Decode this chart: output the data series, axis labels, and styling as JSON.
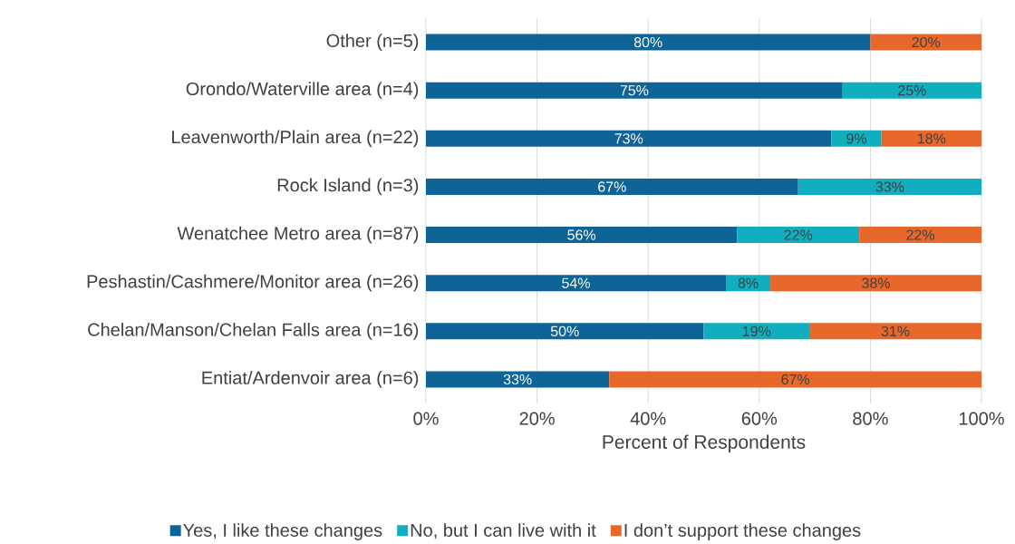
{
  "chart_data": {
    "type": "bar",
    "orientation": "horizontal",
    "stacked": true,
    "xlabel": "Percent of Respondents",
    "categories": [
      "Other (n=5)",
      "Orondo/Waterville area (n=4)",
      "Leavenworth/Plain area (n=22)",
      "Rock Island (n=3)",
      "Wenatchee Metro area (n=87)",
      "Peshastin/Cashmere/Monitor area (n=26)",
      "Chelan/Manson/Chelan Falls area (n=16)",
      "Entiat/Ardenvoir area (n=6)"
    ],
    "series": [
      {
        "name": "Yes, I like these changes",
        "color": "#0e6496",
        "values": [
          80,
          75,
          73,
          67,
          56,
          54,
          50,
          33
        ],
        "value_labels": [
          "80%",
          "75%",
          "73%",
          "67%",
          "56%",
          "54%",
          "50%",
          "33%"
        ]
      },
      {
        "name": "No, but I can live with it",
        "color": "#10aebf",
        "values": [
          null,
          25,
          9,
          33,
          22,
          8,
          19,
          null
        ],
        "value_labels": [
          null,
          "25%",
          "9%",
          "33%",
          "22%",
          "8%",
          "19%",
          null
        ]
      },
      {
        "name": "I don’t support these changes",
        "color": "#e8682c",
        "values": [
          20,
          null,
          18,
          null,
          22,
          38,
          31,
          67
        ],
        "value_labels": [
          "20%",
          null,
          "18%",
          null,
          "22%",
          "38%",
          "31%",
          "67%"
        ]
      }
    ],
    "xlim": [
      0,
      100
    ],
    "xticks": [
      {
        "value": 0,
        "label": "0%"
      },
      {
        "value": 20,
        "label": "20%"
      },
      {
        "value": 40,
        "label": "40%"
      },
      {
        "value": 60,
        "label": "60%"
      },
      {
        "value": 80,
        "label": "80%"
      },
      {
        "value": 100,
        "label": "100%"
      }
    ],
    "grid": "x",
    "legend": "bottom"
  }
}
